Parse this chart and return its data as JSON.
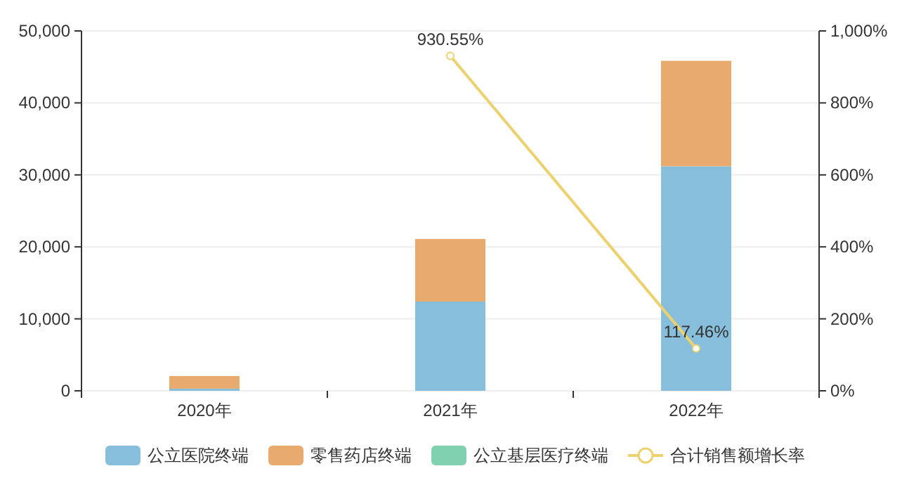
{
  "chart_data": {
    "type": "bar",
    "stacked": true,
    "categories": [
      "2020年",
      "2021年",
      "2022年"
    ],
    "series": [
      {
        "name": "公立医院终端",
        "color": "#86bedb",
        "values": [
          300,
          12400,
          31200
        ]
      },
      {
        "name": "零售药店终端",
        "color": "#e8ab6d",
        "values": [
          1750,
          8700,
          14650
        ]
      },
      {
        "name": "公立基层医疗终端",
        "color": "#7fd1b0",
        "values": [
          null,
          null,
          null
        ]
      },
      {
        "name": "合计销售额增长率",
        "type": "line",
        "axis": "y2",
        "color": "#ecd16e",
        "marker": "circle",
        "values": [
          null,
          930.55,
          117.46
        ],
        "value_labels": [
          null,
          "930.55%",
          "117.46%"
        ]
      }
    ],
    "ylim": [
      0,
      50000
    ],
    "yticks": [
      {
        "value": 0,
        "label": "0"
      },
      {
        "value": 10000,
        "label": "10,000"
      },
      {
        "value": 20000,
        "label": "20,000"
      },
      {
        "value": 30000,
        "label": "30,000"
      },
      {
        "value": 40000,
        "label": "40,000"
      },
      {
        "value": 50000,
        "label": "50,000"
      }
    ],
    "y2lim": [
      0,
      1000
    ],
    "y2ticks": [
      {
        "value": 0,
        "label": "0%"
      },
      {
        "value": 200,
        "label": "200%"
      },
      {
        "value": 400,
        "label": "400%"
      },
      {
        "value": 600,
        "label": "600%"
      },
      {
        "value": 800,
        "label": "800%"
      },
      {
        "value": 1000,
        "label": "1,000%"
      }
    ],
    "grid": "y",
    "legend": "bottom"
  }
}
